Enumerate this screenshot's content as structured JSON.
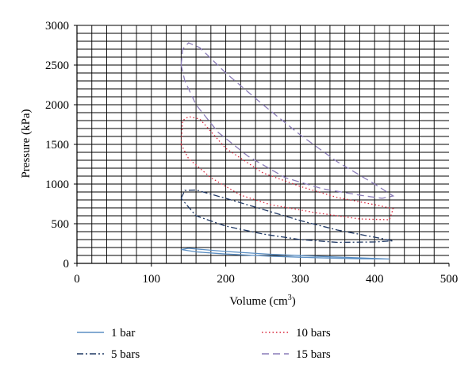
{
  "chart_data": {
    "type": "line",
    "xlabel": "Volume (cm",
    "xlabel_sup": "3",
    "xlabel_tail": ")",
    "ylabel": "Pressure (kPa)",
    "xlim": [
      0,
      500
    ],
    "ylim": [
      0,
      3000
    ],
    "x_ticks": [
      0,
      100,
      200,
      300,
      400,
      500
    ],
    "y_ticks": [
      0,
      500,
      1000,
      1500,
      2000,
      2500,
      3000
    ],
    "grid": true,
    "legend_position": "bottom",
    "series": [
      {
        "name": "1 bar",
        "color": "#5b8fc4",
        "dash": "solid",
        "points": [
          [
            140,
            175
          ],
          [
            150,
            190
          ],
          [
            200,
            150
          ],
          [
            260,
            115
          ],
          [
            320,
            90
          ],
          [
            380,
            70
          ],
          [
            420,
            55
          ],
          [
            380,
            58
          ],
          [
            320,
            72
          ],
          [
            260,
            90
          ],
          [
            200,
            118
          ],
          [
            160,
            145
          ],
          [
            140,
            175
          ]
        ]
      },
      {
        "name": "5 bars",
        "color": "#1f3864",
        "dash": "dashdot",
        "points": [
          [
            140,
            820
          ],
          [
            145,
            920
          ],
          [
            160,
            925
          ],
          [
            200,
            820
          ],
          [
            250,
            680
          ],
          [
            300,
            540
          ],
          [
            350,
            420
          ],
          [
            400,
            330
          ],
          [
            425,
            285
          ],
          [
            400,
            270
          ],
          [
            350,
            265
          ],
          [
            300,
            300
          ],
          [
            250,
            370
          ],
          [
            200,
            470
          ],
          [
            160,
            600
          ],
          [
            140,
            820
          ]
        ]
      },
      {
        "name": "10 bars",
        "color": "#d9263b",
        "dash": "dotted",
        "points": [
          [
            140,
            1500
          ],
          [
            142,
            1800
          ],
          [
            150,
            1850
          ],
          [
            165,
            1820
          ],
          [
            200,
            1450
          ],
          [
            250,
            1140
          ],
          [
            300,
            970
          ],
          [
            350,
            830
          ],
          [
            400,
            740
          ],
          [
            425,
            690
          ],
          [
            420,
            550
          ],
          [
            380,
            560
          ],
          [
            320,
            640
          ],
          [
            260,
            740
          ],
          [
            220,
            860
          ],
          [
            180,
            1080
          ],
          [
            150,
            1320
          ],
          [
            140,
            1500
          ]
        ]
      },
      {
        "name": "15 bars",
        "color": "#8a7bb8",
        "dash": "dashed",
        "points": [
          [
            140,
            2500
          ],
          [
            142,
            2700
          ],
          [
            150,
            2780
          ],
          [
            165,
            2720
          ],
          [
            200,
            2400
          ],
          [
            250,
            2000
          ],
          [
            300,
            1620
          ],
          [
            350,
            1280
          ],
          [
            400,
            1000
          ],
          [
            425,
            850
          ],
          [
            410,
            820
          ],
          [
            380,
            860
          ],
          [
            330,
            940
          ],
          [
            280,
            1080
          ],
          [
            230,
            1350
          ],
          [
            190,
            1650
          ],
          [
            160,
            2000
          ],
          [
            145,
            2300
          ],
          [
            140,
            2500
          ]
        ]
      }
    ]
  }
}
